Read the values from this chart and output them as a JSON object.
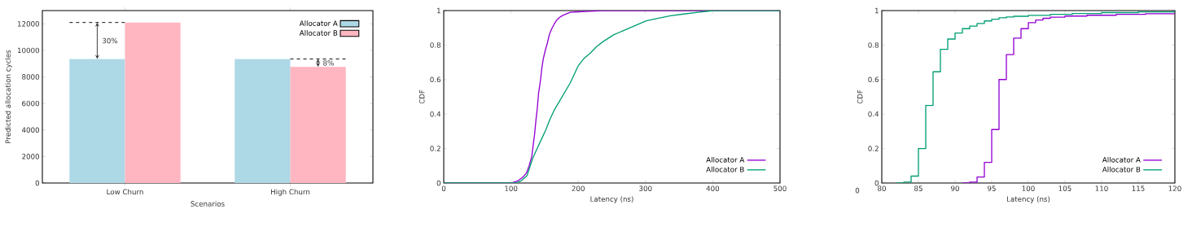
{
  "chart_data": [
    {
      "type": "bar",
      "xlabel": "Scenarios",
      "ylabel": "Predicted allocation cycles",
      "categories": [
        "Low Churn",
        "High Churn"
      ],
      "series": [
        {
          "name": "Allocator A",
          "color": "#add8e6",
          "values": [
            9350,
            9350
          ]
        },
        {
          "name": "Allocator B",
          "color": "#ffb6c1",
          "values": [
            12100,
            8750
          ]
        }
      ],
      "ylim": [
        0,
        13000
      ],
      "yticks": [
        0,
        2000,
        4000,
        6000,
        8000,
        10000,
        12000
      ],
      "legend": "top right",
      "annotations": [
        "30%",
        "8%"
      ],
      "ref_lines": [
        {
          "axis": "y",
          "value": 12100,
          "line_style": "dashed"
        },
        {
          "axis": "y",
          "value": 9350,
          "line_style": "dashed"
        }
      ]
    },
    {
      "type": "line",
      "xlabel": "Latency (ns)",
      "ylabel": "CDF",
      "series": [
        {
          "name": "Allocator A",
          "color": "#9400d3",
          "x": [
            0,
            101,
            110,
            118,
            123,
            127,
            131,
            133,
            135,
            137,
            139,
            141,
            144,
            146,
            148,
            151,
            154,
            157,
            160,
            164,
            168,
            172,
            176,
            182,
            188,
            200,
            217,
            237,
            500
          ],
          "values": [
            0,
            0,
            0.012,
            0.035,
            0.058,
            0.1,
            0.155,
            0.22,
            0.28,
            0.36,
            0.43,
            0.52,
            0.6,
            0.67,
            0.72,
            0.77,
            0.81,
            0.86,
            0.89,
            0.92,
            0.945,
            0.96,
            0.97,
            0.98,
            0.99,
            0.993,
            0.996,
            1,
            1
          ]
        },
        {
          "name": "Allocator B",
          "color": "#009e73",
          "x": [
            0,
            108,
            116,
            124,
            132,
            140,
            146,
            152,
            158,
            164,
            170,
            176,
            182,
            188,
            194,
            200,
            208,
            217,
            227,
            237,
            245,
            253,
            265,
            277,
            289,
            301,
            318,
            337,
            357,
            378,
            402,
            500
          ],
          "values": [
            0,
            0,
            0.015,
            0.044,
            0.14,
            0.21,
            0.26,
            0.31,
            0.37,
            0.42,
            0.46,
            0.5,
            0.54,
            0.58,
            0.63,
            0.68,
            0.72,
            0.75,
            0.79,
            0.82,
            0.84,
            0.86,
            0.88,
            0.9,
            0.92,
            0.94,
            0.955,
            0.97,
            0.98,
            0.99,
            1,
            1
          ]
        }
      ],
      "xlim": [
        0,
        500
      ],
      "xticks": [
        0,
        100,
        200,
        300,
        400,
        500
      ],
      "ylim": [
        0,
        1
      ],
      "yticks": [
        0,
        0.2,
        0.4,
        0.6,
        0.8,
        1
      ],
      "legend": "bottom right"
    },
    {
      "type": "step",
      "xlabel": "Latency (ns)",
      "ylabel": "CDF",
      "series": [
        {
          "name": "Allocator A",
          "color": "#9400d3",
          "x": [
            91,
            92,
            93,
            94,
            95,
            96,
            97,
            98,
            99,
            100,
            101,
            102,
            103,
            105,
            108,
            112,
            116,
            120
          ],
          "values": [
            0,
            0.005,
            0.035,
            0.12,
            0.31,
            0.6,
            0.745,
            0.84,
            0.895,
            0.93,
            0.945,
            0.955,
            0.962,
            0.968,
            0.973,
            0.978,
            0.982,
            0.985
          ]
        },
        {
          "name": "Allocator B",
          "color": "#009e73",
          "x": [
            82,
            83,
            84,
            85,
            86,
            87,
            88,
            89,
            90,
            91,
            92,
            93,
            94,
            95,
            96,
            97,
            98,
            100,
            103,
            106,
            110,
            115,
            120
          ],
          "values": [
            0,
            0.005,
            0.04,
            0.2,
            0.45,
            0.645,
            0.775,
            0.835,
            0.87,
            0.895,
            0.91,
            0.925,
            0.94,
            0.95,
            0.958,
            0.963,
            0.967,
            0.972,
            0.978,
            0.983,
            0.988,
            0.992,
            0.995
          ]
        }
      ],
      "annotations": [
        "0"
      ],
      "xlim": [
        80,
        120
      ],
      "xticks": [
        80,
        85,
        90,
        95,
        100,
        105,
        110,
        115,
        120
      ],
      "ylim": [
        0,
        1
      ],
      "yticks": [
        0,
        0.2,
        0.4,
        0.6,
        0.8,
        1
      ],
      "legend": "bottom right"
    }
  ]
}
